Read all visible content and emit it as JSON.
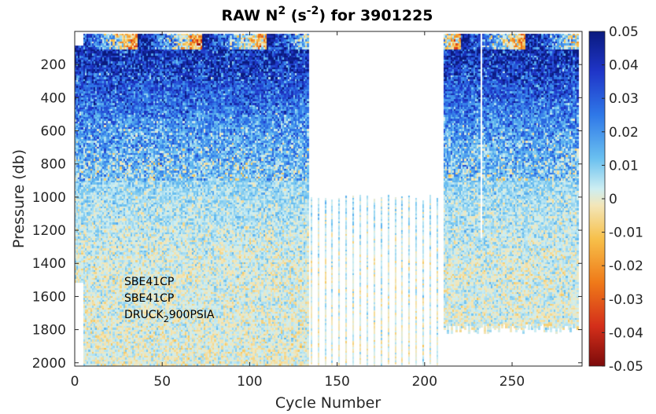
{
  "chart_data": {
    "type": "heatmap",
    "title": {
      "prefix": "RAW N",
      "sup1": "2",
      "mid": " (s",
      "sup2": "-2",
      "suffix": ") for 3901225"
    },
    "xlabel": "Cycle Number",
    "ylabel": "Pressure (db)",
    "xlim": [
      0,
      290
    ],
    "ylim": [
      2020,
      0
    ],
    "xticks": [
      0,
      50,
      100,
      150,
      200,
      250
    ],
    "yticks": [
      200,
      400,
      600,
      800,
      1000,
      1200,
      1400,
      1600,
      1800,
      2000
    ],
    "colorbar": {
      "range": [
        -0.05,
        0.05
      ],
      "ticks": [
        0.05,
        0.04,
        0.03,
        0.02,
        0.01,
        0,
        -0.01,
        -0.02,
        -0.03,
        -0.04,
        -0.05
      ],
      "tick_labels": [
        "0.05",
        "0.04",
        "0.03",
        "0.02",
        "0.01",
        "0",
        "-0.01",
        "-0.02",
        "-0.03",
        "-0.04",
        "-0.05"
      ],
      "colormap": "jet"
    },
    "annotations": [
      {
        "text": "SBE41CP"
      },
      {
        "text": "SBE41CP"
      },
      {
        "base": "DRUCK",
        "sub": "2",
        "rest": "900PSIA"
      }
    ],
    "data_description": {
      "shallow_profile_top_db": 15,
      "gap_with_spikes_cycles": [
        135,
        212
      ],
      "gap_spike_top_db": 990,
      "truncated_profiles_cycles": [
        212,
        288
      ],
      "truncated_profile_bottom_db": 1820,
      "value_trend": "strongly positive (~0.04-0.05) above 300 db, decreasing to ~0.005 by 1000 db and near 0 below 1500 db"
    }
  }
}
